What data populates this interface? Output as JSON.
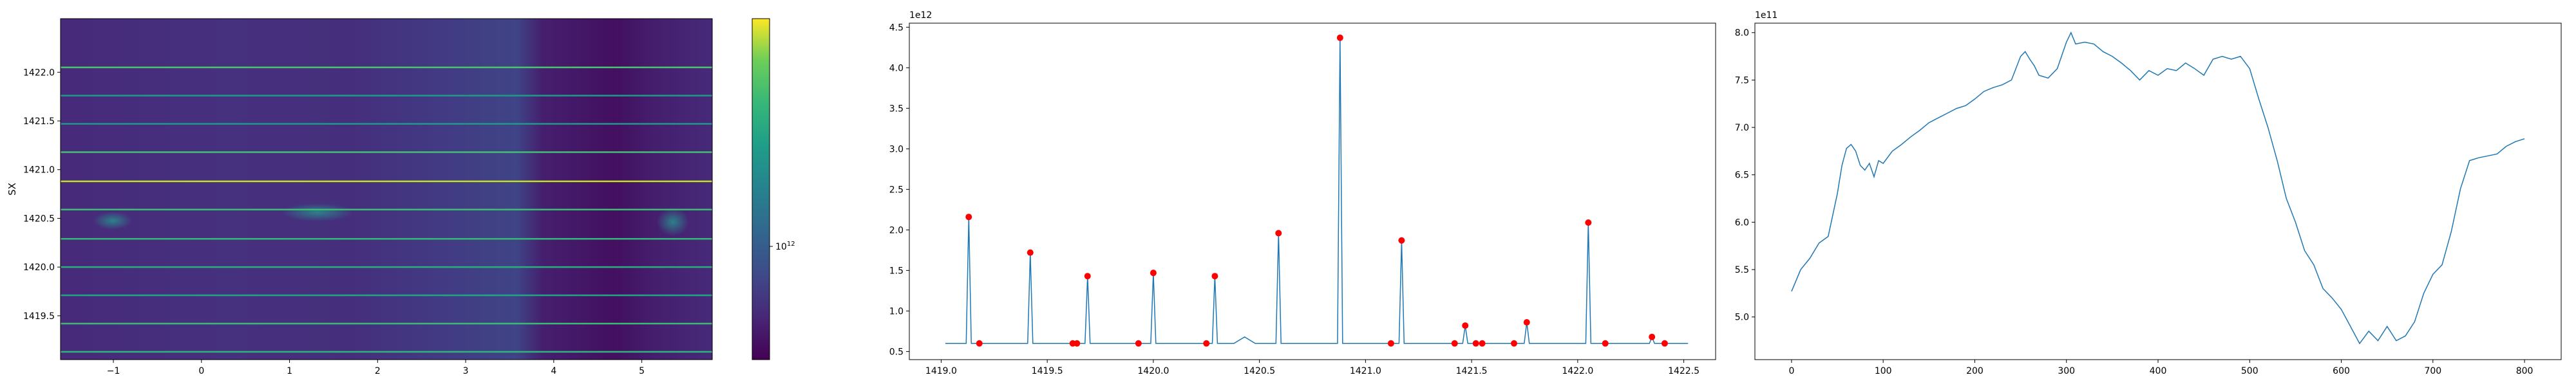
{
  "chart_data": [
    {
      "type": "heatmap",
      "colormap": "viridis",
      "color_scale": "log",
      "ylabel": "SX",
      "xlim": [
        -1.6,
        5.8
      ],
      "ylim": [
        1419.05,
        1422.55
      ],
      "x_ticks": [
        -1,
        0,
        1,
        2,
        3,
        4,
        5
      ],
      "x_tick_labels": [
        "−1",
        "0",
        "1",
        "2",
        "3",
        "4",
        "5"
      ],
      "y_ticks": [
        1419.5,
        1420.0,
        1420.5,
        1421.0,
        1421.5,
        1422.0
      ],
      "y_tick_labels": [
        "1419.5",
        "1420.0",
        "1420.5",
        "1421.0",
        "1421.5",
        "1422.0"
      ],
      "colorbar_tick_label": "10",
      "colorbar_tick_exponent": "12",
      "bright_rows": [
        {
          "y": 1419.13,
          "color": "#2fb47c"
        },
        {
          "y": 1419.42,
          "color": "#3aba76"
        },
        {
          "y": 1419.71,
          "color": "#21a685"
        },
        {
          "y": 1420.0,
          "color": "#29af7f"
        },
        {
          "y": 1420.29,
          "color": "#35b779"
        },
        {
          "y": 1420.59,
          "color": "#3dbc74"
        },
        {
          "y": 1420.88,
          "color": "#c2df23"
        },
        {
          "y": 1421.18,
          "color": "#43bf71"
        },
        {
          "y": 1421.47,
          "color": "#1f988b"
        },
        {
          "y": 1421.76,
          "color": "#1f9a8a"
        },
        {
          "y": 1422.05,
          "color": "#4ac16d"
        }
      ]
    },
    {
      "type": "line",
      "x_exponent_label": "",
      "y_offset_label": "1e12",
      "xlim": [
        1418.85,
        1422.65
      ],
      "ylim": [
        0.4,
        4.55
      ],
      "x_ticks": [
        1419.0,
        1419.5,
        1420.0,
        1420.5,
        1421.0,
        1421.5,
        1422.0,
        1422.5
      ],
      "x_tick_labels": [
        "1419.0",
        "1419.5",
        "1420.0",
        "1420.5",
        "1421.0",
        "1421.5",
        "1422.0",
        "1422.5"
      ],
      "y_ticks": [
        0.5,
        1.0,
        1.5,
        2.0,
        2.5,
        3.0,
        3.5,
        4.0,
        4.5
      ],
      "y_tick_labels": [
        "0.5",
        "1.0",
        "1.5",
        "2.0",
        "2.5",
        "3.0",
        "3.5",
        "4.0",
        "4.5"
      ],
      "baseline": 0.6,
      "x_range": [
        1419.02,
        1422.52
      ],
      "peaks": [
        {
          "x": 1419.13,
          "y": 2.16
        },
        {
          "x": 1419.42,
          "y": 1.72
        },
        {
          "x": 1419.69,
          "y": 1.43
        },
        {
          "x": 1420.0,
          "y": 1.47
        },
        {
          "x": 1420.29,
          "y": 1.43
        },
        {
          "x": 1420.59,
          "y": 1.96
        },
        {
          "x": 1420.88,
          "y": 4.37
        },
        {
          "x": 1421.17,
          "y": 1.87
        },
        {
          "x": 1421.47,
          "y": 0.82
        },
        {
          "x": 1421.76,
          "y": 0.86
        },
        {
          "x": 1422.05,
          "y": 2.09
        },
        {
          "x": 1422.35,
          "y": 0.68
        }
      ],
      "bumps": [
        {
          "x": 1420.43,
          "y": 0.68
        },
        {
          "x": 1421.55,
          "y": 0.6
        }
      ],
      "markers": [
        {
          "x": 1419.13,
          "y": 2.16
        },
        {
          "x": 1419.18,
          "y": 0.6
        },
        {
          "x": 1419.42,
          "y": 1.72
        },
        {
          "x": 1419.62,
          "y": 0.6
        },
        {
          "x": 1419.64,
          "y": 0.6
        },
        {
          "x": 1419.69,
          "y": 1.43
        },
        {
          "x": 1419.93,
          "y": 0.6
        },
        {
          "x": 1420.0,
          "y": 1.47
        },
        {
          "x": 1420.25,
          "y": 0.6
        },
        {
          "x": 1420.29,
          "y": 1.43
        },
        {
          "x": 1420.59,
          "y": 1.96
        },
        {
          "x": 1420.88,
          "y": 4.37
        },
        {
          "x": 1421.12,
          "y": 0.6
        },
        {
          "x": 1421.17,
          "y": 1.87
        },
        {
          "x": 1421.42,
          "y": 0.6
        },
        {
          "x": 1421.47,
          "y": 0.82
        },
        {
          "x": 1421.52,
          "y": 0.6
        },
        {
          "x": 1421.55,
          "y": 0.6
        },
        {
          "x": 1421.7,
          "y": 0.6
        },
        {
          "x": 1421.76,
          "y": 0.86
        },
        {
          "x": 1422.05,
          "y": 2.09
        },
        {
          "x": 1422.13,
          "y": 0.6
        },
        {
          "x": 1422.35,
          "y": 0.68
        },
        {
          "x": 1422.41,
          "y": 0.6
        }
      ],
      "line_color": "#1f77b4",
      "marker_color": "#ff0000"
    },
    {
      "type": "line",
      "y_offset_label": "1e11",
      "xlim": [
        -40,
        840
      ],
      "ylim": [
        4.55,
        8.1
      ],
      "x_ticks": [
        0,
        100,
        200,
        300,
        400,
        500,
        600,
        700,
        800
      ],
      "x_tick_labels": [
        "0",
        "100",
        "200",
        "300",
        "400",
        "500",
        "600",
        "700",
        "800"
      ],
      "y_ticks": [
        5.0,
        5.5,
        6.0,
        6.5,
        7.0,
        7.5,
        8.0
      ],
      "y_tick_labels": [
        "5.0",
        "5.5",
        "6.0",
        "6.5",
        "7.0",
        "7.5",
        "8.0"
      ],
      "line_color": "#1f77b4",
      "x": [
        0,
        10,
        20,
        30,
        40,
        50,
        55,
        60,
        65,
        70,
        75,
        80,
        85,
        90,
        95,
        100,
        110,
        120,
        130,
        140,
        150,
        160,
        170,
        180,
        190,
        200,
        210,
        220,
        230,
        240,
        250,
        255,
        260,
        265,
        270,
        280,
        290,
        300,
        305,
        310,
        320,
        330,
        340,
        350,
        360,
        370,
        380,
        390,
        400,
        410,
        420,
        430,
        440,
        450,
        460,
        470,
        480,
        490,
        500,
        510,
        520,
        530,
        540,
        550,
        560,
        570,
        580,
        590,
        600,
        610,
        620,
        630,
        640,
        650,
        660,
        670,
        680,
        690,
        700,
        710,
        720,
        730,
        740,
        750,
        760,
        770,
        780,
        790,
        800
      ],
      "y": [
        5.27,
        5.5,
        5.62,
        5.78,
        5.85,
        6.3,
        6.6,
        6.78,
        6.82,
        6.75,
        6.6,
        6.55,
        6.62,
        6.48,
        6.65,
        6.62,
        6.75,
        6.82,
        6.9,
        6.97,
        7.05,
        7.1,
        7.15,
        7.2,
        7.23,
        7.3,
        7.38,
        7.42,
        7.45,
        7.5,
        7.75,
        7.8,
        7.72,
        7.65,
        7.55,
        7.52,
        7.62,
        7.9,
        8.0,
        7.88,
        7.9,
        7.88,
        7.8,
        7.75,
        7.68,
        7.6,
        7.5,
        7.6,
        7.55,
        7.62,
        7.6,
        7.68,
        7.62,
        7.55,
        7.72,
        7.75,
        7.72,
        7.75,
        7.62,
        7.3,
        7.0,
        6.65,
        6.25,
        6.0,
        5.7,
        5.55,
        5.3,
        5.2,
        5.08,
        4.9,
        4.72,
        4.85,
        4.75,
        4.9,
        4.75,
        4.8,
        4.95,
        5.25,
        5.45,
        5.55,
        5.9,
        6.35,
        6.65,
        6.68,
        6.7,
        6.72,
        6.8,
        6.85,
        6.88
      ]
    }
  ]
}
